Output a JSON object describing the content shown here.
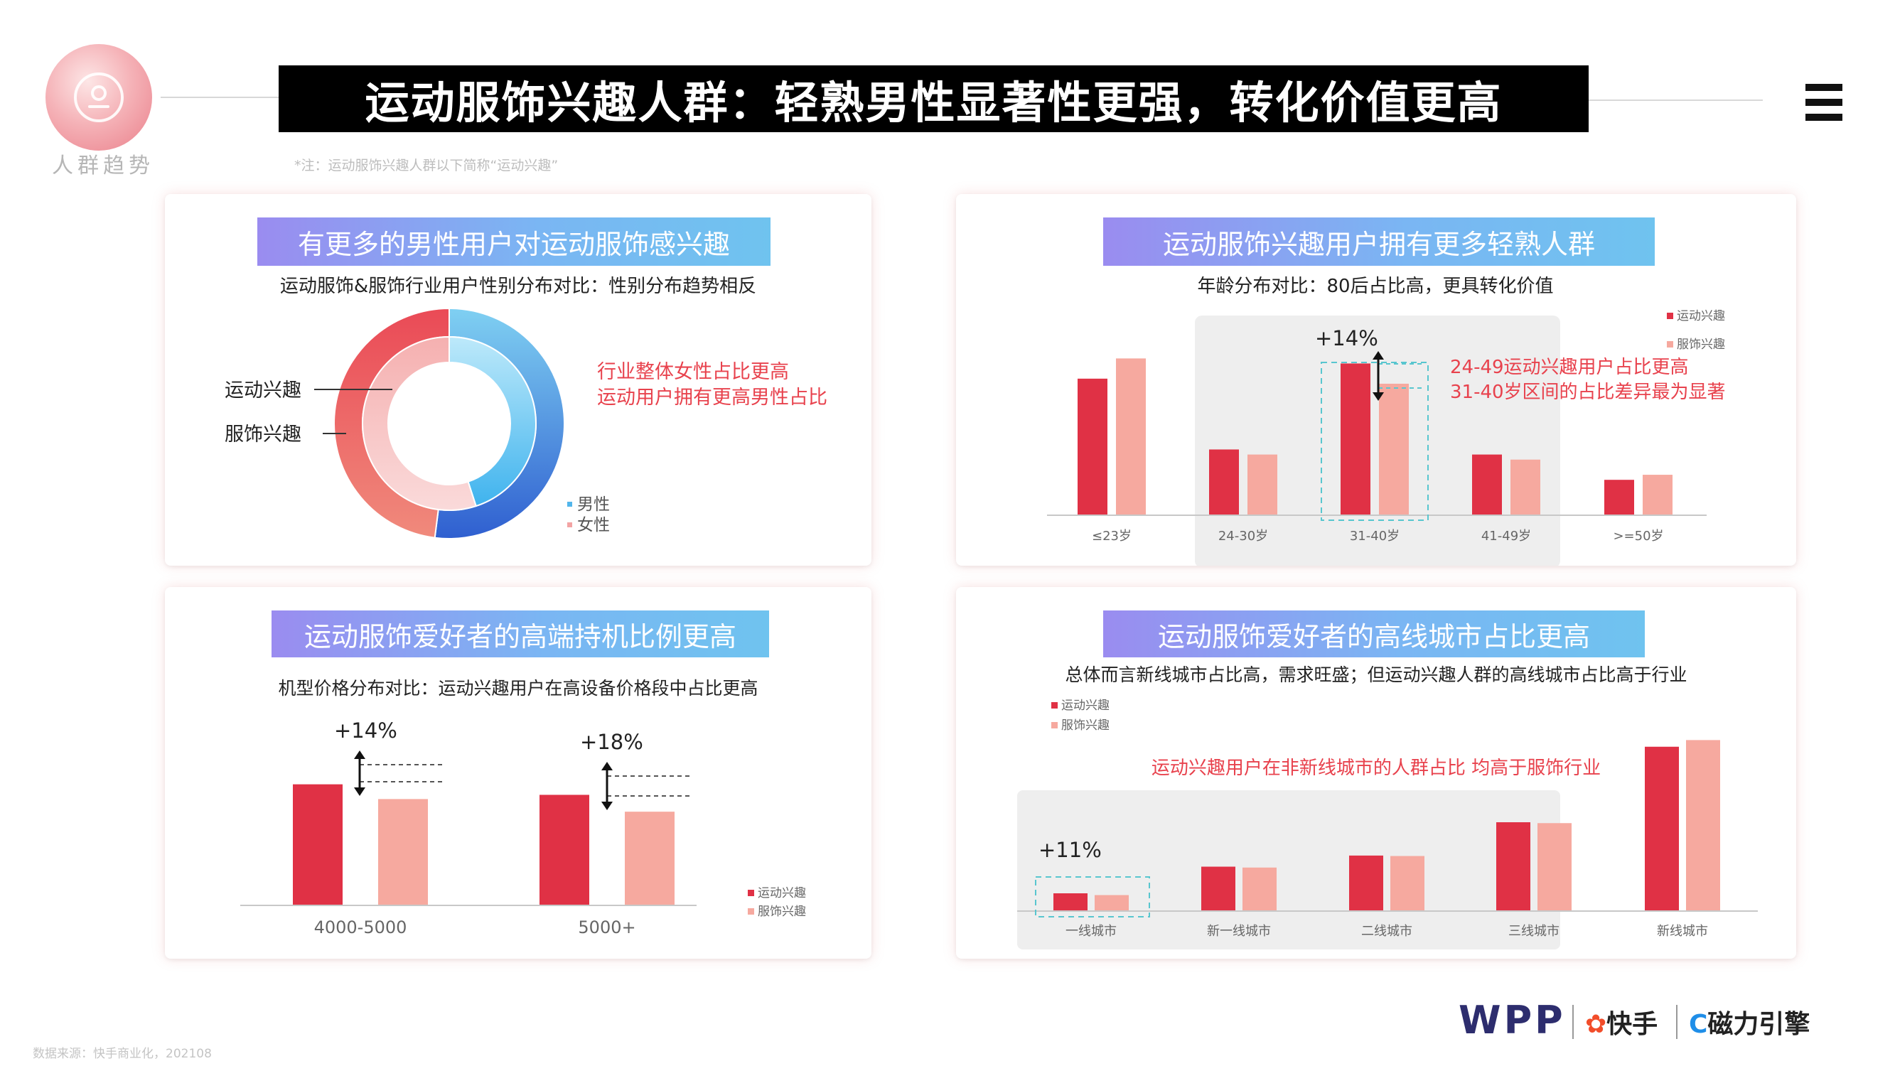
{
  "header": {
    "section_label": "人群趋势",
    "title": "运动服饰兴趣人群：轻熟男性显著性更强，转化价值更高",
    "note": "*注：运动服饰兴趣人群以下简称“运动兴趣”"
  },
  "panels": {
    "gender": {
      "title": "有更多的男性用户对运动服饰感兴趣",
      "subtitle": "运动服饰&服饰行业用户性别分布对比：性别分布趋势相反",
      "callout_label_outer": "运动兴趣",
      "callout_label_inner": "服饰兴趣",
      "note_lines": [
        "行业整体女性占比更高",
        "运动用户拥有更高男性占比"
      ],
      "legend": [
        "男性",
        "女性"
      ]
    },
    "age": {
      "title": "运动服饰兴趣用户拥有更多轻熟人群",
      "subtitle": "年龄分布对比：80后占比高，更具转化价值",
      "note_lines": [
        "24-49运动兴趣用户占比更高",
        "31-40岁区间的占比差异最为显著"
      ],
      "diff_label": "+14%",
      "legend": [
        "运动兴趣",
        "服饰兴趣"
      ]
    },
    "device": {
      "title": "运动服饰爱好者的高端持机比例更高",
      "subtitle": "机型价格分布对比：运动兴趣用户在高设备价格段中占比更高",
      "diff_labels": [
        "+14%",
        "+18%"
      ],
      "legend": [
        "运动兴趣",
        "服饰兴趣"
      ]
    },
    "city": {
      "title": "运动服饰爱好者的高线城市占比更高",
      "subtitle": "总体而言新线城市占比高，需求旺盛；但运动兴趣人群的高线城市占比高于行业",
      "note": "运动兴趣用户在非新线城市的人群占比 均高于服饰行业",
      "diff_label": "+11%",
      "legend": [
        "运动兴趣",
        "服饰兴趣"
      ]
    }
  },
  "colors": {
    "sport_red": "#e03145",
    "apparel_pink": "#f6a99f",
    "male_blue_dark": "#2f5fd0",
    "male_blue_light": "#7fd0f2",
    "female_red": "#ea4a56",
    "female_pink": "#f8c4c4",
    "note_red": "#e8424d"
  },
  "chart_data": [
    {
      "type": "pie",
      "title": "有更多的男性用户对运动服饰感兴趣",
      "series": [
        {
          "name": "运动兴趣",
          "categories": [
            "男性",
            "女性"
          ],
          "values": [
            52,
            48
          ]
        },
        {
          "name": "服饰兴趣",
          "categories": [
            "男性",
            "女性"
          ],
          "values": [
            45,
            55
          ]
        }
      ]
    },
    {
      "type": "bar",
      "title": "运动服饰兴趣用户拥有更多轻熟人群",
      "categories": [
        "≤23岁",
        "24-30岁",
        "31-40岁",
        "41-49岁",
        ">=50岁"
      ],
      "series": [
        {
          "name": "运动兴趣",
          "values": [
            27,
            13,
            30,
            12,
            7
          ]
        },
        {
          "name": "服饰兴趣",
          "values": [
            31,
            12,
            26,
            11,
            8
          ]
        }
      ],
      "annotations": [
        "+14%"
      ]
    },
    {
      "type": "bar",
      "title": "运动服饰爱好者的高端持机比例更高",
      "categories": [
        "4000-5000",
        "5000+"
      ],
      "series": [
        {
          "name": "运动兴趣",
          "values": [
            11.5,
            10.5
          ]
        },
        {
          "name": "服饰兴趣",
          "values": [
            10.1,
            8.9
          ]
        }
      ],
      "annotations": [
        "+14%",
        "+18%"
      ]
    },
    {
      "type": "bar",
      "title": "运动服饰爱好者的高线城市占比更高",
      "categories": [
        "一线城市",
        "新一线城市",
        "二线城市",
        "三线城市",
        "新线城市"
      ],
      "series": [
        {
          "name": "运动兴趣",
          "values": [
            4,
            10,
            12.5,
            20,
            37
          ]
        },
        {
          "name": "服饰兴趣",
          "values": [
            3.6,
            9.8,
            12.4,
            19.8,
            38.5
          ]
        }
      ],
      "annotations": [
        "+11%"
      ]
    }
  ],
  "footer": {
    "source": "数据来源：快手商业化，202108",
    "brand_wpp": "WPP",
    "brand_kuaishou": "快手",
    "brand_cili": "磁力引擎"
  }
}
